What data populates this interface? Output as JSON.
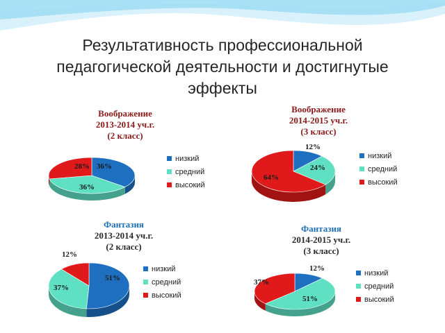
{
  "title": {
    "line1": "Результативность профессиональной",
    "line2": "педагогической деятельности и достигнутые",
    "line3": "эффекты"
  },
  "colors": {
    "low": "#1f6fc0",
    "mid": "#5fe0c2",
    "high": "#e01a1a",
    "wave_light": "#d8f1fb",
    "wave_dark": "#7fd1ef"
  },
  "chart_data": [
    {
      "type": "pie",
      "title": [
        "Воображение",
        "2013-2014 уч.г.",
        "(2 класс)"
      ],
      "legend": [
        "низкий",
        "средний",
        "высокий"
      ],
      "values": [
        36,
        36,
        28
      ],
      "labels": [
        "36%",
        "36%",
        "28%"
      ]
    },
    {
      "type": "pie",
      "title": [
        "Воображение",
        "2014-2015 уч.г.",
        "(3 класс)"
      ],
      "legend": [
        "низкий",
        "средний",
        "высокий"
      ],
      "values": [
        12,
        24,
        64
      ],
      "labels": [
        "12%",
        "24%",
        "64%"
      ]
    },
    {
      "type": "pie",
      "title": [
        "Фантазия",
        "2013-2014 уч.г.",
        "(2 класс)"
      ],
      "legend": [
        "низкий",
        "средний",
        "высокий"
      ],
      "values": [
        51,
        37,
        12
      ],
      "labels": [
        "51%",
        "37%",
        "12%"
      ]
    },
    {
      "type": "pie",
      "title": [
        "Фантазия",
        "2014-2015 уч.г.",
        "(3 класс)"
      ],
      "legend": [
        "низкий",
        "средний",
        "высокий"
      ],
      "values": [
        12,
        51,
        37
      ],
      "labels": [
        "12%",
        "51%",
        "37%"
      ]
    }
  ]
}
